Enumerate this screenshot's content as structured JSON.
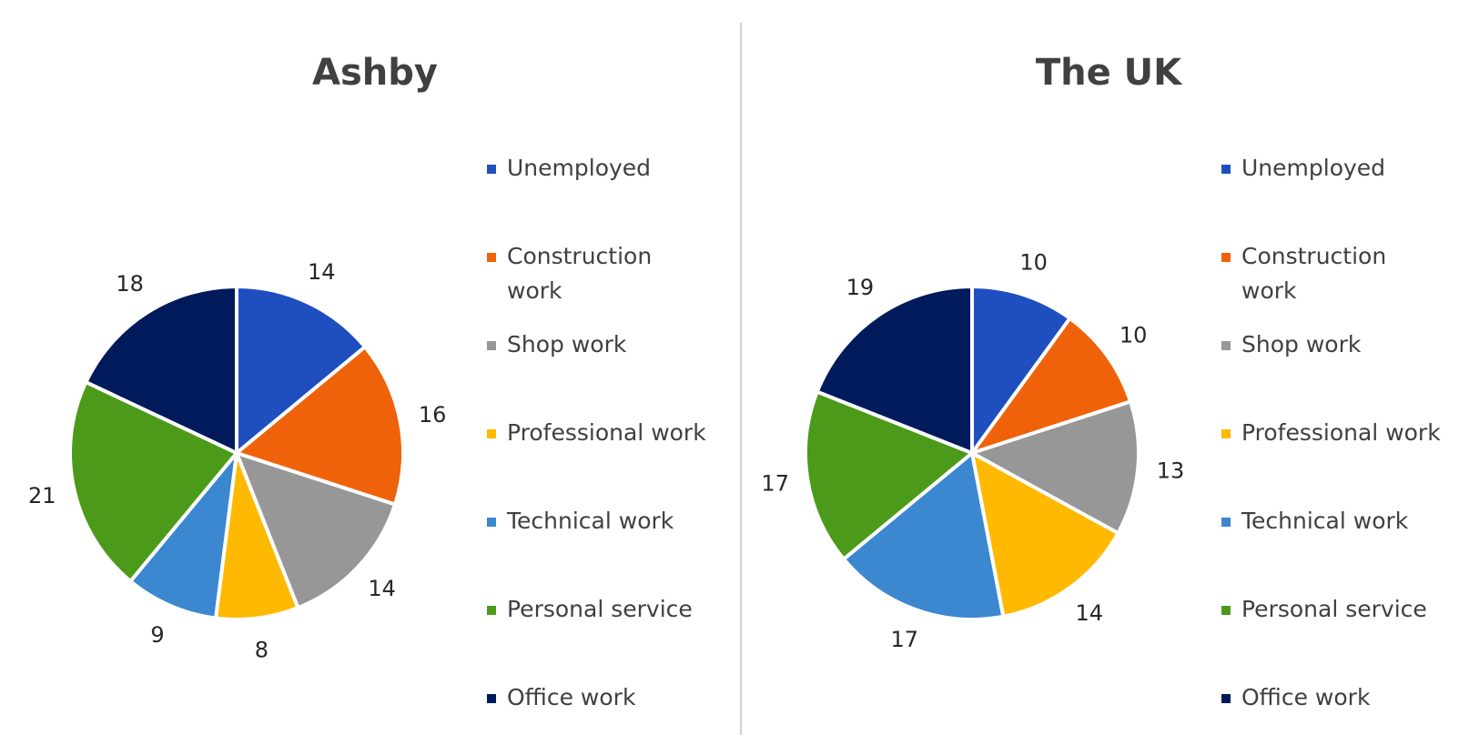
{
  "chart_data": [
    {
      "type": "pie",
      "title": "Ashby",
      "categories": [
        "Unemployed",
        "Construction work",
        "Shop work",
        "Professional work",
        "Technical work",
        "Personal service",
        "Office work"
      ],
      "values": [
        14,
        16,
        14,
        8,
        9,
        21,
        18
      ],
      "colors": [
        "#1f4fbf",
        "#f0620a",
        "#979797",
        "#ffb900",
        "#3b87d0",
        "#4c9a1a",
        "#001a5c"
      ],
      "legend_position": "right"
    },
    {
      "type": "pie",
      "title": "The UK",
      "categories": [
        "Unemployed",
        "Construction work",
        "Shop work",
        "Professional work",
        "Technical work",
        "Personal service",
        "Office work"
      ],
      "values": [
        10,
        10,
        13,
        14,
        17,
        17,
        19
      ],
      "colors": [
        "#1f4fbf",
        "#f0620a",
        "#979797",
        "#ffb900",
        "#3b87d0",
        "#4c9a1a",
        "#001a5c"
      ],
      "legend_position": "right"
    }
  ]
}
